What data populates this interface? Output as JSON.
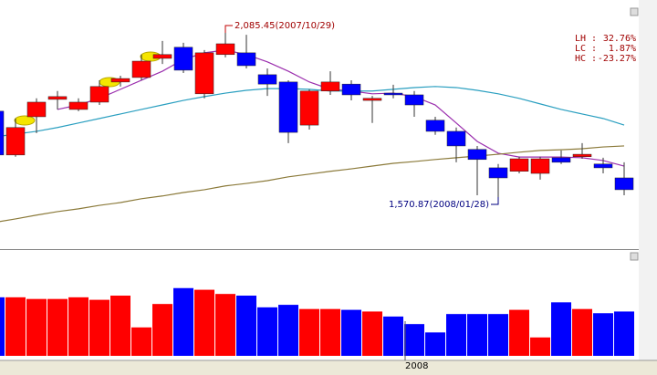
{
  "chart_data": {
    "type": "candlestick",
    "categories": [
      null,
      null,
      null,
      null,
      null,
      null,
      null,
      null,
      null,
      null,
      null,
      null,
      null,
      null,
      null,
      null,
      null,
      null,
      null,
      null,
      "2008",
      null,
      null,
      null,
      null,
      null,
      null,
      null,
      null,
      null,
      null
    ],
    "open": [
      1839,
      1713,
      1823,
      1873,
      1844,
      1865,
      1923,
      1936,
      1991,
      2023,
      1889,
      2002,
      2007,
      1944,
      1923,
      1799,
      1897,
      1917,
      1870,
      1891,
      1886,
      1813,
      1781,
      1729,
      1676,
      1666,
      1660,
      1705,
      1708,
      1687,
      1647
    ],
    "close": [
      1713,
      1792,
      1865,
      1881,
      1865,
      1910,
      1933,
      1983,
      2002,
      1957,
      2007,
      2033,
      1970,
      1917,
      1778,
      1897,
      1923,
      1886,
      1876,
      1886,
      1857,
      1781,
      1739,
      1700,
      1647,
      1702,
      1702,
      1692,
      1715,
      1676,
      1613
    ],
    "high": [
      1849,
      1818,
      1876,
      1897,
      1876,
      1928,
      1941,
      2002,
      2041,
      2036,
      2015,
      2085.45,
      2059,
      1962,
      1928,
      1902,
      1954,
      1928,
      1883,
      1915,
      1897,
      1823,
      1792,
      1739,
      1687,
      1708,
      1708,
      1726,
      1747,
      1705,
      1692
    ],
    "low": [
      1700,
      1708,
      1776,
      1844,
      1839,
      1857,
      1910,
      1928,
      1975,
      1949,
      1876,
      1994,
      1962,
      1883,
      1747,
      1786,
      1886,
      1870,
      1805,
      1876,
      1823,
      1771,
      1692,
      1597,
      1570.87,
      1660,
      1642,
      1687,
      1702,
      1660,
      1597
    ],
    "up_color": "#ff0000",
    "down_color": "#0000ff",
    "ylim": [
      1450,
      2159
    ],
    "series": [
      {
        "color": "#9b2fae",
        "values": [
          null,
          null,
          null,
          1844,
          1857,
          1876,
          1902,
          1928,
          1954,
          1988,
          2007,
          2015,
          2002,
          1981,
          1954,
          1923,
          1902,
          1897,
          1889,
          1891,
          1881,
          1857,
          1805,
          1752,
          1718,
          1707,
          1707,
          1707,
          1705,
          1697,
          1681
        ]
      },
      {
        "color": "#2a9fc0",
        "values": [
          1765,
          1773,
          1781,
          1792,
          1805,
          1818,
          1831,
          1844,
          1857,
          1870,
          1881,
          1891,
          1899,
          1904,
          1904,
          1902,
          1897,
          1897,
          1897,
          1902,
          1907,
          1910,
          1907,
          1899,
          1889,
          1876,
          1860,
          1844,
          1831,
          1818,
          1799
        ]
      },
      {
        "color": "#8b7a3a",
        "values": [
          1519,
          1529,
          1540,
          1550,
          1558,
          1568,
          1576,
          1587,
          1595,
          1605,
          1613,
          1624,
          1631,
          1639,
          1650,
          1658,
          1666,
          1673,
          1681,
          1689,
          1694,
          1700,
          1705,
          1710,
          1715,
          1721,
          1726,
          1728,
          1731,
          1736,
          1739
        ]
      }
    ],
    "volume": {
      "values": [
        70,
        70,
        68,
        68,
        70,
        67,
        72,
        34,
        62,
        81,
        79,
        74,
        72,
        58,
        61,
        56,
        56,
        55,
        53,
        47,
        38,
        28,
        50,
        50,
        50,
        55,
        22,
        64,
        56,
        51,
        53
      ],
      "ylim": [
        0,
        120
      ]
    },
    "annotations": [
      {
        "index": 11,
        "at": "high",
        "text": "2,085.45(2007/10/29)"
      },
      {
        "index": 24,
        "at": "low",
        "text": "1,570.87(2008/01/28)"
      }
    ],
    "stats": [
      {
        "name": "LH :",
        "label": "32.76%"
      },
      {
        "name": "LC :",
        "label": "1.87%"
      },
      {
        "name": "HC :",
        "label": "-23.27%"
      }
    ]
  }
}
